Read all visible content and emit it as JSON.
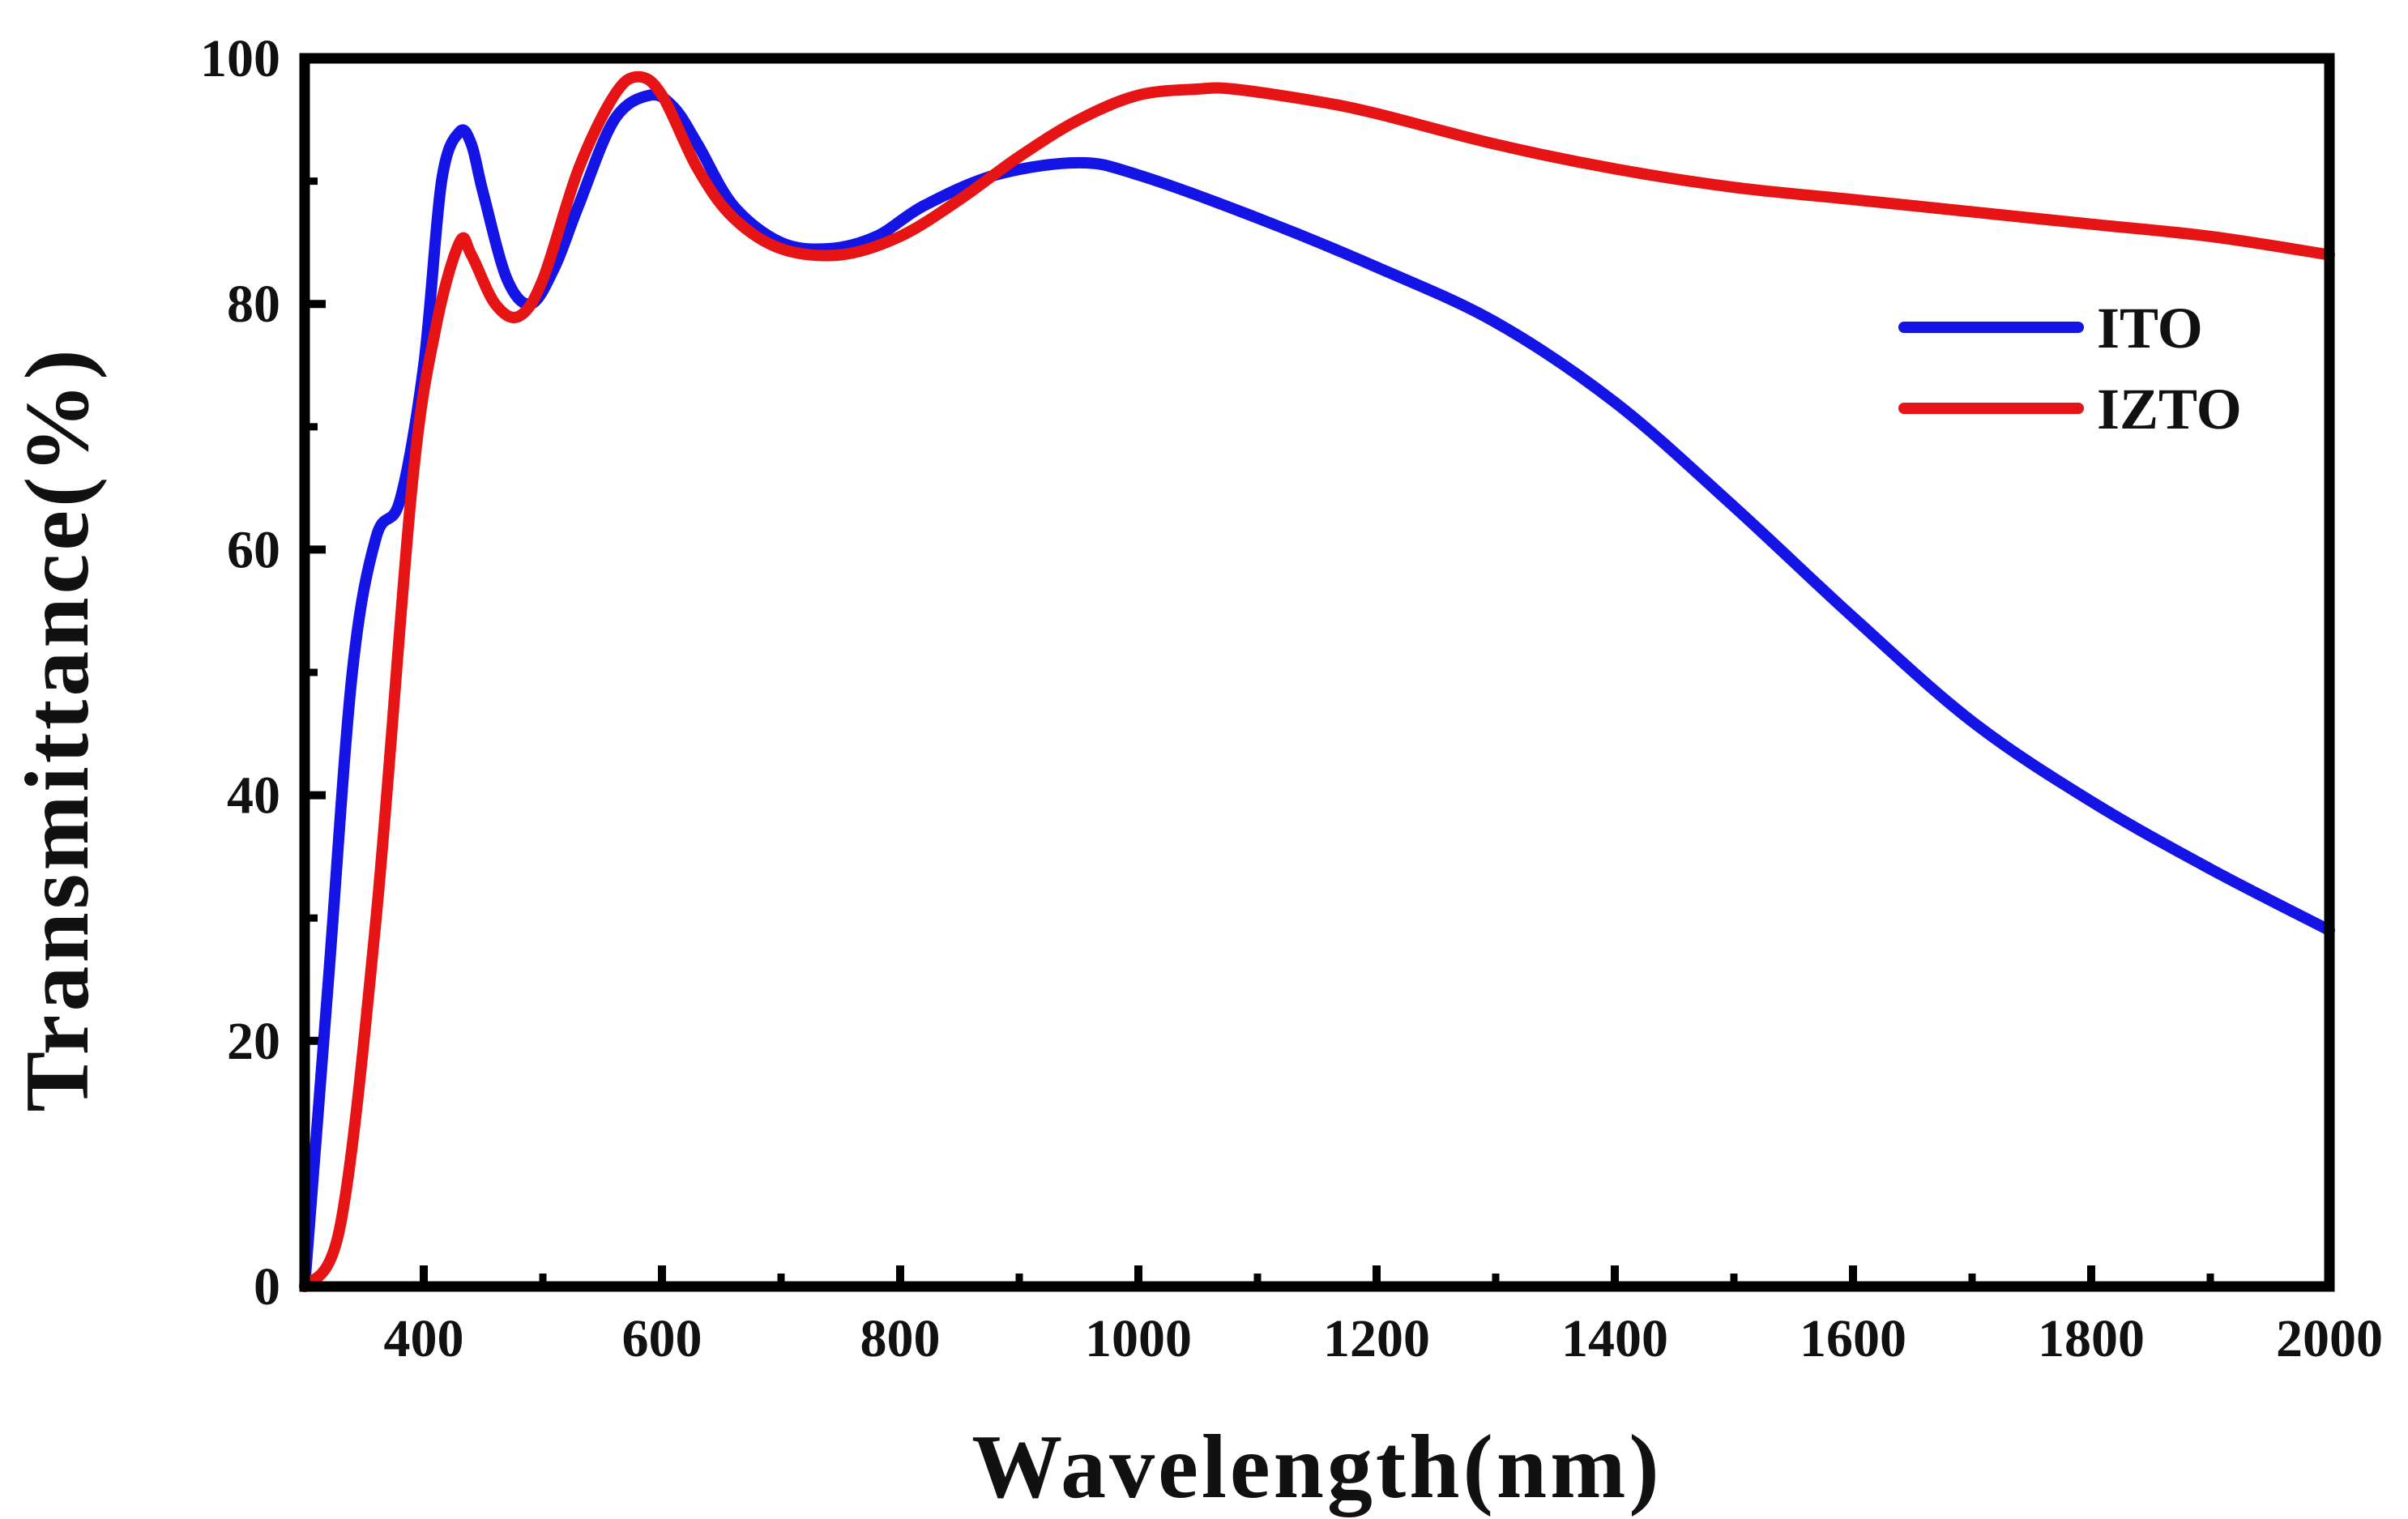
{
  "chart_data": {
    "type": "line",
    "xlabel": "Wavelength(nm)",
    "ylabel": "Transmittance(%)",
    "xlim": [
      300,
      2000
    ],
    "ylim": [
      0,
      100
    ],
    "xticks": [
      400,
      600,
      800,
      1000,
      1200,
      1400,
      1600,
      1800,
      2000
    ],
    "yticks": [
      0,
      20,
      40,
      60,
      80,
      100
    ],
    "grid": false,
    "legend_position": "top-right",
    "series": [
      {
        "name": "ITO",
        "color": "#1414e6",
        "x": [
          300,
          320,
          340,
          360,
          380,
          400,
          415,
          430,
          440,
          450,
          470,
          490,
          510,
          530,
          560,
          590,
          610,
          630,
          660,
          700,
          740,
          780,
          820,
          880,
          950,
          1000,
          1100,
          1200,
          1300,
          1400,
          1500,
          1600,
          1700,
          1800,
          1900,
          2000
        ],
        "y": [
          0,
          25,
          50,
          61,
          64,
          75,
          90,
          94,
          93,
          89,
          82,
          80,
          83,
          88,
          95,
          97,
          96,
          93,
          88,
          85,
          84.5,
          85.5,
          88,
          90.5,
          91.5,
          90.5,
          87,
          83,
          78.5,
          72,
          63.5,
          54.5,
          46,
          39.5,
          34,
          29
        ]
      },
      {
        "name": "IZTO",
        "color": "#e61414",
        "x": [
          300,
          330,
          360,
          390,
          410,
          430,
          440,
          460,
          480,
          500,
          530,
          560,
          580,
          600,
          630,
          660,
          700,
          750,
          800,
          850,
          900,
          950,
          1000,
          1050,
          1080,
          1150,
          1200,
          1300,
          1400,
          1500,
          1600,
          1700,
          1800,
          1900,
          2000
        ],
        "y": [
          0,
          5,
          30,
          65,
          78,
          85,
          84,
          80,
          79,
          82,
          91,
          97,
          98.5,
          97,
          91,
          87,
          84.5,
          84,
          85.5,
          88.5,
          92,
          95,
          97,
          97.5,
          97.5,
          96.5,
          95.5,
          93,
          91,
          89.5,
          88.5,
          87.5,
          86.5,
          85.5,
          84
        ]
      }
    ]
  }
}
